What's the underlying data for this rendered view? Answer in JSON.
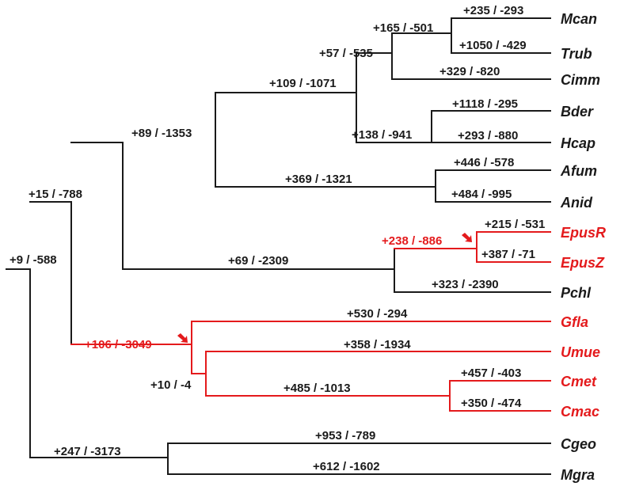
{
  "colors": {
    "default": "#1a1a1a",
    "highlight": "#e41a1c"
  },
  "branches": [
    {
      "key": "root",
      "label": "+9 / -588",
      "color": "default"
    },
    {
      "key": "bigA",
      "label": "+15 / -788",
      "color": "default"
    },
    {
      "key": "main",
      "label": "+89 / -1353",
      "color": "default"
    },
    {
      "key": "eur",
      "label": "+109 / -1071",
      "color": "default"
    },
    {
      "key": "ony",
      "label": "+57 / -535",
      "color": "default"
    },
    {
      "key": "mt",
      "label": "+165 / -501",
      "color": "default"
    },
    {
      "key": "mcan",
      "label": "+235 / -293",
      "color": "default"
    },
    {
      "key": "trub",
      "label": "+1050 / -429",
      "color": "default"
    },
    {
      "key": "cimm",
      "label": "+329 / -820",
      "color": "default"
    },
    {
      "key": "bh",
      "label": "+138 / -941",
      "color": "default"
    },
    {
      "key": "bder",
      "label": "+1118 / -295",
      "color": "default"
    },
    {
      "key": "hcap",
      "label": "+293 / -880",
      "color": "default"
    },
    {
      "key": "aa",
      "label": "+369 / -1321",
      "color": "default"
    },
    {
      "key": "afum",
      "label": "+446 / -578",
      "color": "default"
    },
    {
      "key": "anid",
      "label": "+484 / -995",
      "color": "default"
    },
    {
      "key": "ep",
      "label": "+69 / -2309",
      "color": "default"
    },
    {
      "key": "epus",
      "label": "+238 / -886",
      "color": "highlight"
    },
    {
      "key": "epusr",
      "label": "+215 / -531",
      "color": "default"
    },
    {
      "key": "epusz",
      "label": "+387 / -71",
      "color": "default"
    },
    {
      "key": "pchl",
      "label": "+323 / -2390",
      "color": "default"
    },
    {
      "key": "bas",
      "label": "+106 / -3049",
      "color": "highlight"
    },
    {
      "key": "gfla",
      "label": "+530 / -294",
      "color": "default"
    },
    {
      "key": "uc",
      "label": "+10 / -4",
      "color": "default"
    },
    {
      "key": "umue",
      "label": "+358 / -1934",
      "color": "default"
    },
    {
      "key": "cc",
      "label": "+485 / -1013",
      "color": "default"
    },
    {
      "key": "cmet",
      "label": "+457 / -403",
      "color": "default"
    },
    {
      "key": "cmac",
      "label": "+350 / -474",
      "color": "default"
    },
    {
      "key": "cm",
      "label": "+247 / -3173",
      "color": "default"
    },
    {
      "key": "cgeo",
      "label": "+953 / -789",
      "color": "default"
    },
    {
      "key": "mgra",
      "label": "+612 / -1602",
      "color": "default"
    }
  ],
  "leaves": [
    {
      "name": "Mcan",
      "color": "default"
    },
    {
      "name": "Trub",
      "color": "default"
    },
    {
      "name": "Cimm",
      "color": "default"
    },
    {
      "name": "Bder",
      "color": "default"
    },
    {
      "name": "Hcap",
      "color": "default"
    },
    {
      "name": "Afum",
      "color": "default"
    },
    {
      "name": "Anid",
      "color": "default"
    },
    {
      "name": "EpusR",
      "color": "highlight"
    },
    {
      "name": "EpusZ",
      "color": "highlight"
    },
    {
      "name": "Pchl",
      "color": "default"
    },
    {
      "name": "Gfla",
      "color": "highlight"
    },
    {
      "name": "Umue",
      "color": "highlight"
    },
    {
      "name": "Cmet",
      "color": "highlight"
    },
    {
      "name": "Cmac",
      "color": "highlight"
    },
    {
      "name": "Cgeo",
      "color": "default"
    },
    {
      "name": "Mgra",
      "color": "default"
    }
  ]
}
